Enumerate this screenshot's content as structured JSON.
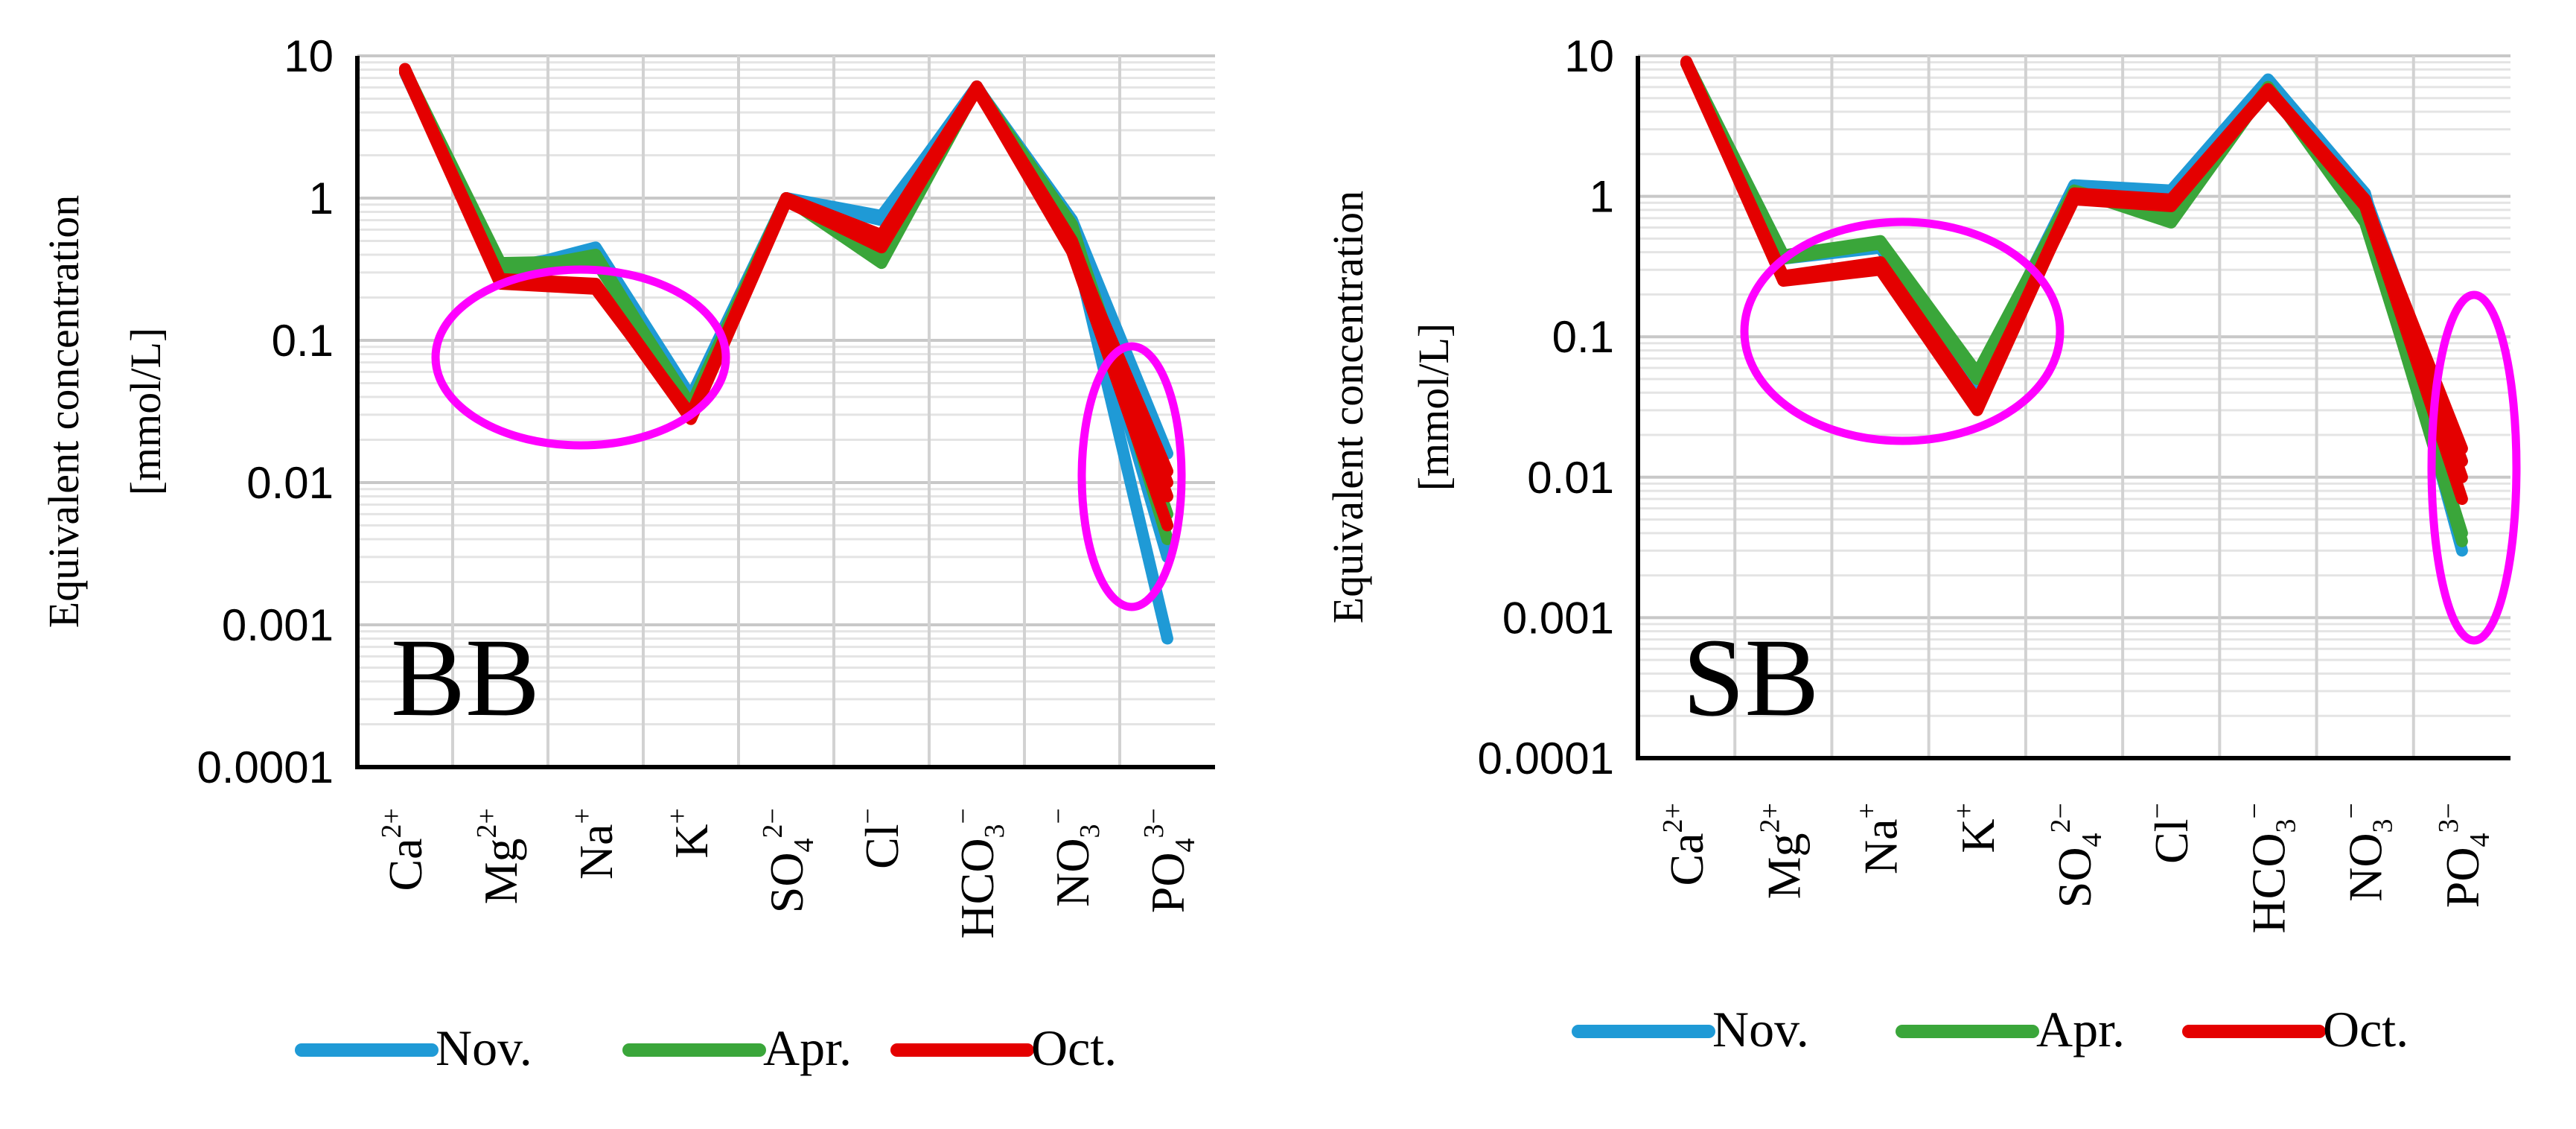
{
  "chart_data": [
    {
      "type": "line",
      "panel_label": "BB",
      "ylabel_lines": [
        "Equivalent concentration",
        "[mmol/L]"
      ],
      "y_scale": "log",
      "ylim": [
        0.0001,
        10
      ],
      "y_ticks": [
        "10",
        "1",
        "0.1",
        "0.01",
        "0.001",
        "0.0001"
      ],
      "categories": [
        {
          "base": "Ca",
          "sub": "",
          "sup": "2+"
        },
        {
          "base": "Mg",
          "sub": "",
          "sup": "2+"
        },
        {
          "base": "Na",
          "sub": "",
          "sup": "+"
        },
        {
          "base": "K",
          "sub": "",
          "sup": "+"
        },
        {
          "base": "SO",
          "sub": "4",
          "sup": "2−"
        },
        {
          "base": "Cl",
          "sub": "",
          "sup": "−"
        },
        {
          "base": "HCO",
          "sub": "3",
          "sup": "−"
        },
        {
          "base": "NO",
          "sub": "3",
          "sup": "−"
        },
        {
          "base": "PO",
          "sub": "4",
          "sup": "3−"
        }
      ],
      "grid": true,
      "series": [
        {
          "name": "Nov.",
          "color": "#1f9ad6",
          "lines": [
            [
              8.0,
              0.3,
              0.45,
              0.04,
              1.0,
              0.7,
              6.0,
              0.7,
              0.016
            ],
            [
              7.6,
              0.28,
              0.4,
              0.035,
              1.0,
              0.75,
              5.8,
              0.6,
              0.003
            ],
            [
              7.8,
              0.32,
              0.42,
              0.038,
              1.0,
              0.72,
              6.1,
              0.55,
              0.0008
            ]
          ]
        },
        {
          "name": "Apr.",
          "color": "#3aa63a",
          "lines": [
            [
              8.0,
              0.32,
              0.38,
              0.035,
              1.0,
              0.35,
              6.0,
              0.6,
              0.005
            ],
            [
              7.7,
              0.3,
              0.4,
              0.033,
              1.0,
              0.4,
              5.9,
              0.65,
              0.004
            ],
            [
              7.9,
              0.35,
              0.36,
              0.034,
              1.0,
              0.38,
              6.0,
              0.62,
              0.006
            ]
          ]
        },
        {
          "name": "Oct.",
          "color": "#e40000",
          "lines": [
            [
              8.0,
              0.26,
              0.24,
              0.028,
              0.95,
              0.45,
              5.8,
              0.45,
              0.012
            ],
            [
              7.7,
              0.25,
              0.23,
              0.03,
              1.0,
              0.55,
              6.0,
              0.5,
              0.008
            ],
            [
              7.9,
              0.27,
              0.25,
              0.029,
              0.95,
              0.5,
              5.9,
              0.42,
              0.005
            ],
            [
              8.1,
              0.26,
              0.24,
              0.028,
              1.0,
              0.48,
              6.1,
              0.48,
              0.01
            ]
          ]
        }
      ]
    },
    {
      "type": "line",
      "panel_label": "SB",
      "ylabel_lines": [
        "Equivalent concentration",
        "[mmol/L]"
      ],
      "y_scale": "log",
      "ylim": [
        0.0001,
        10
      ],
      "y_ticks": [
        "10",
        "1",
        "0.1",
        "0.01",
        "0.001",
        "0.0001"
      ],
      "categories": [
        {
          "base": "Ca",
          "sub": "",
          "sup": "2+"
        },
        {
          "base": "Mg",
          "sub": "",
          "sup": "2+"
        },
        {
          "base": "Na",
          "sub": "",
          "sup": "+"
        },
        {
          "base": "K",
          "sub": "",
          "sup": "+"
        },
        {
          "base": "SO",
          "sub": "4",
          "sup": "2−"
        },
        {
          "base": "Cl",
          "sub": "",
          "sup": "−"
        },
        {
          "base": "HCO",
          "sub": "3",
          "sup": "−"
        },
        {
          "base": "NO",
          "sub": "3",
          "sup": "−"
        },
        {
          "base": "PO",
          "sub": "4",
          "sup": "3−"
        }
      ],
      "grid": true,
      "series": [
        {
          "name": "Nov.",
          "color": "#1f9ad6",
          "lines": [
            [
              9.0,
              0.38,
              0.45,
              0.05,
              1.2,
              1.0,
              6.5,
              1.0,
              0.013
            ],
            [
              8.8,
              0.36,
              0.43,
              0.045,
              1.2,
              1.1,
              6.8,
              1.05,
              0.003
            ]
          ]
        },
        {
          "name": "Apr.",
          "color": "#3aa63a",
          "lines": [
            [
              9.0,
              0.38,
              0.48,
              0.055,
              1.1,
              0.65,
              6.0,
              0.65,
              0.004
            ],
            [
              8.8,
              0.36,
              0.46,
              0.05,
              1.1,
              0.7,
              6.0,
              0.7,
              0.0035
            ]
          ]
        },
        {
          "name": "Oct.",
          "color": "#e40000",
          "lines": [
            [
              9.0,
              0.25,
              0.3,
              0.03,
              1.0,
              0.9,
              5.5,
              0.9,
              0.016
            ],
            [
              8.8,
              0.26,
              0.32,
              0.032,
              1.05,
              0.95,
              5.8,
              0.95,
              0.01
            ],
            [
              8.9,
              0.27,
              0.34,
              0.035,
              0.95,
              0.85,
              5.6,
              0.85,
              0.007
            ],
            [
              9.1,
              0.26,
              0.31,
              0.031,
              1.0,
              0.92,
              5.7,
              0.88,
              0.013
            ]
          ]
        }
      ]
    }
  ]
}
